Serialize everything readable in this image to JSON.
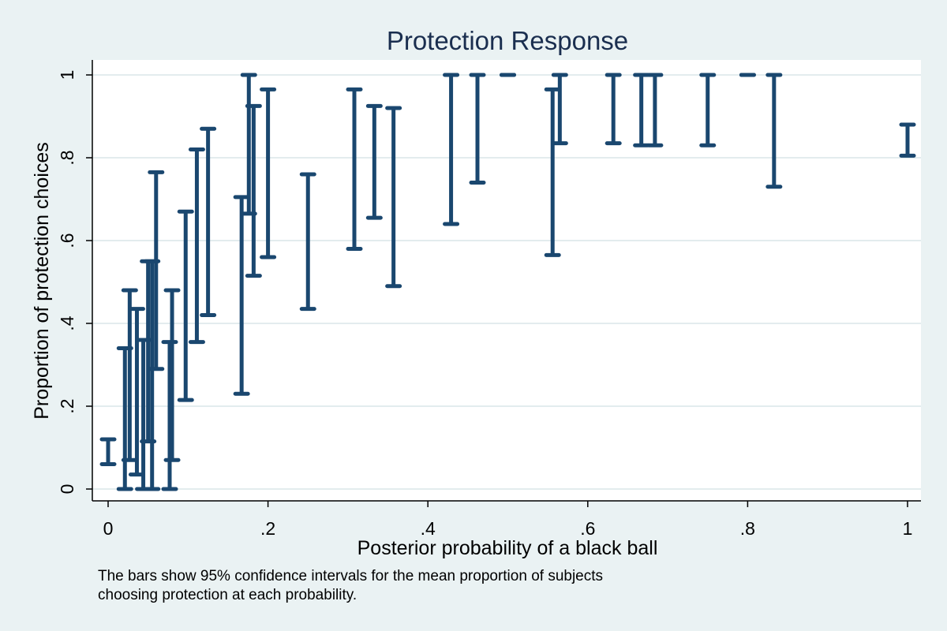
{
  "chart_data": {
    "type": "errorbar",
    "title": "Protection Response",
    "xlabel": "Posterior probability of a black ball",
    "ylabel": "Proportion of protection choices",
    "xlim": [
      -0.02,
      1.03
    ],
    "ylim": [
      -0.03,
      1.03
    ],
    "xticks": [
      {
        "value": 0,
        "label": "0"
      },
      {
        "value": 0.2,
        "label": ".2"
      },
      {
        "value": 0.4,
        "label": ".4"
      },
      {
        "value": 0.6,
        "label": ".6"
      },
      {
        "value": 0.8,
        "label": ".8"
      },
      {
        "value": 1,
        "label": "1"
      }
    ],
    "yticks": [
      {
        "value": 0,
        "label": "0"
      },
      {
        "value": 0.2,
        "label": ".2"
      },
      {
        "value": 0.4,
        "label": ".4"
      },
      {
        "value": 0.6,
        "label": ".6"
      },
      {
        "value": 0.8,
        "label": ".8"
      },
      {
        "value": 1,
        "label": "1"
      }
    ],
    "grid": true,
    "bar_color": "#1a476f",
    "series": [
      {
        "points": [
          {
            "x": 0.0,
            "lower": 0.06,
            "upper": 0.12
          },
          {
            "x": 0.021,
            "lower": 0.0,
            "upper": 0.34
          },
          {
            "x": 0.027,
            "lower": 0.07,
            "upper": 0.48
          },
          {
            "x": 0.036,
            "lower": 0.035,
            "upper": 0.435
          },
          {
            "x": 0.044,
            "lower": 0.0,
            "upper": 0.36
          },
          {
            "x": 0.05,
            "lower": 0.115,
            "upper": 0.55
          },
          {
            "x": 0.055,
            "lower": 0.0,
            "upper": 0.55
          },
          {
            "x": 0.06,
            "lower": 0.29,
            "upper": 0.765
          },
          {
            "x": 0.077,
            "lower": 0.0,
            "upper": 0.355
          },
          {
            "x": 0.08,
            "lower": 0.07,
            "upper": 0.48
          },
          {
            "x": 0.097,
            "lower": 0.215,
            "upper": 0.67
          },
          {
            "x": 0.111,
            "lower": 0.355,
            "upper": 0.82
          },
          {
            "x": 0.125,
            "lower": 0.42,
            "upper": 0.87
          },
          {
            "x": 0.167,
            "lower": 0.23,
            "upper": 0.705
          },
          {
            "x": 0.176,
            "lower": 0.665,
            "upper": 1.0
          },
          {
            "x": 0.182,
            "lower": 0.515,
            "upper": 0.925
          },
          {
            "x": 0.2,
            "lower": 0.56,
            "upper": 0.965
          },
          {
            "x": 0.25,
            "lower": 0.435,
            "upper": 0.76
          },
          {
            "x": 0.308,
            "lower": 0.58,
            "upper": 0.965
          },
          {
            "x": 0.333,
            "lower": 0.655,
            "upper": 0.925
          },
          {
            "x": 0.357,
            "lower": 0.49,
            "upper": 0.92
          },
          {
            "x": 0.429,
            "lower": 0.64,
            "upper": 1.0
          },
          {
            "x": 0.462,
            "lower": 0.74,
            "upper": 1.0
          },
          {
            "x": 0.5,
            "lower": 1.0,
            "upper": 1.0
          },
          {
            "x": 0.556,
            "lower": 0.565,
            "upper": 0.965
          },
          {
            "x": 0.565,
            "lower": 0.835,
            "upper": 1.0
          },
          {
            "x": 0.632,
            "lower": 0.835,
            "upper": 1.0
          },
          {
            "x": 0.667,
            "lower": 0.83,
            "upper": 1.0
          },
          {
            "x": 0.684,
            "lower": 0.83,
            "upper": 1.0
          },
          {
            "x": 0.75,
            "lower": 0.83,
            "upper": 1.0
          },
          {
            "x": 0.8,
            "lower": 1.0,
            "upper": 1.0
          },
          {
            "x": 0.833,
            "lower": 0.73,
            "upper": 1.0
          },
          {
            "x": 1.0,
            "lower": 0.805,
            "upper": 0.88
          }
        ]
      }
    ]
  },
  "note": {
    "line1": "The bars show 95% confidence intervals for the mean proportion of subjects",
    "line2": "choosing protection at each probability."
  }
}
